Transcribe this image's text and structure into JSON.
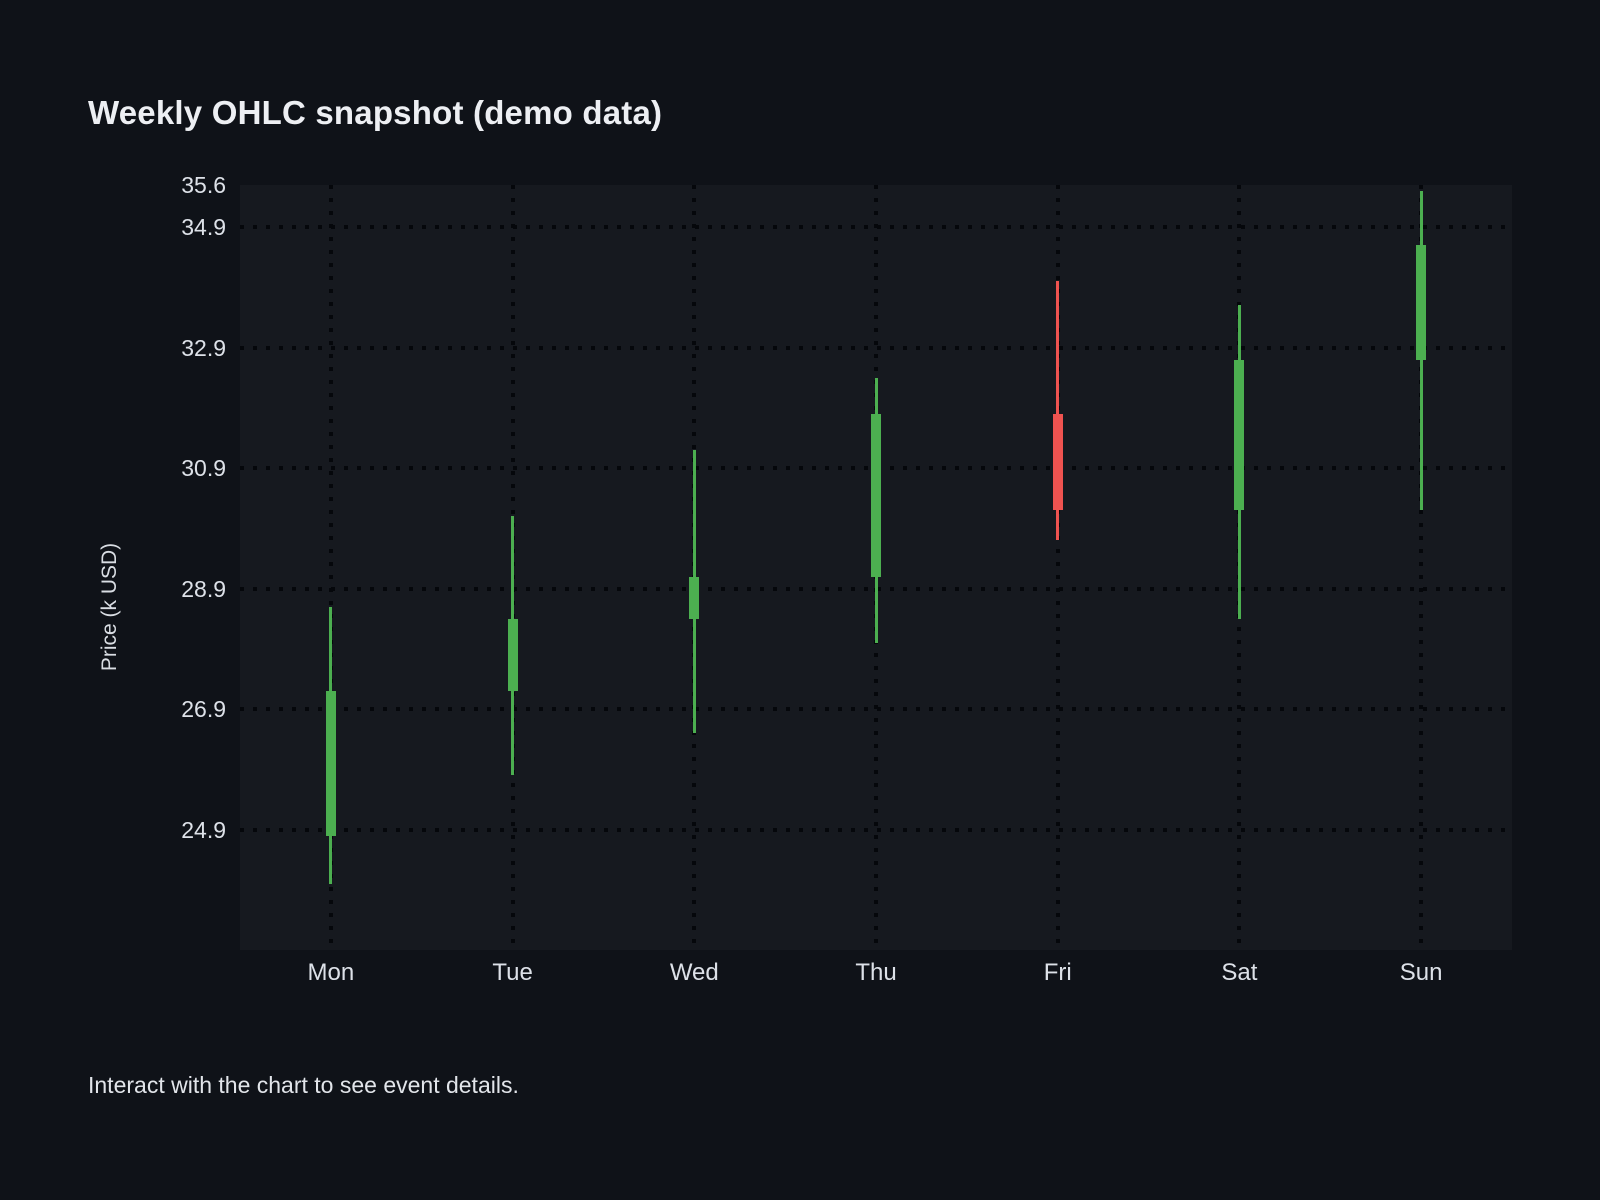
{
  "title": "Weekly OHLC snapshot (demo data)",
  "caption": "Interact with the chart to see event details.",
  "chart_data": {
    "type": "candlestick",
    "title": "Weekly OHLC snapshot (demo data)",
    "xlabel": "",
    "ylabel": "Price (k USD)",
    "categories": [
      "Mon",
      "Tue",
      "Wed",
      "Thu",
      "Fri",
      "Sat",
      "Sun"
    ],
    "ohlc": [
      {
        "day": "Mon",
        "open": 24.8,
        "high": 28.6,
        "low": 24.0,
        "close": 27.2,
        "direction": "up"
      },
      {
        "day": "Tue",
        "open": 27.2,
        "high": 30.1,
        "low": 25.8,
        "close": 28.4,
        "direction": "up"
      },
      {
        "day": "Wed",
        "open": 28.4,
        "high": 31.2,
        "low": 26.5,
        "close": 29.1,
        "direction": "up"
      },
      {
        "day": "Thu",
        "open": 29.1,
        "high": 32.4,
        "low": 28.0,
        "close": 31.8,
        "direction": "up"
      },
      {
        "day": "Fri",
        "open": 31.8,
        "high": 34.0,
        "low": 29.7,
        "close": 30.2,
        "direction": "down"
      },
      {
        "day": "Sat",
        "open": 30.2,
        "high": 33.6,
        "low": 28.4,
        "close": 32.7,
        "direction": "up"
      },
      {
        "day": "Sun",
        "open": 32.7,
        "high": 35.5,
        "low": 30.2,
        "close": 34.6,
        "direction": "up"
      }
    ],
    "y_ticks": [
      {
        "label": "35.6",
        "value": 35.6,
        "gridline": false
      },
      {
        "label": "34.9",
        "value": 34.9,
        "gridline": true
      },
      {
        "label": "32.9",
        "value": 32.9,
        "gridline": true
      },
      {
        "label": "30.9",
        "value": 30.9,
        "gridline": true
      },
      {
        "label": "28.9",
        "value": 28.9,
        "gridline": true
      },
      {
        "label": "26.9",
        "value": 26.9,
        "gridline": true
      },
      {
        "label": "24.9",
        "value": 24.9,
        "gridline": true
      }
    ],
    "y_range": [
      22.9,
      35.6
    ],
    "grid": "dotted",
    "legend": "none",
    "colors": {
      "up": "#4caf50",
      "down": "#ef5350",
      "background": "#0f1218",
      "plot_background": "#16191f",
      "gridline": "#05070b",
      "text": "#dde1e8"
    }
  }
}
